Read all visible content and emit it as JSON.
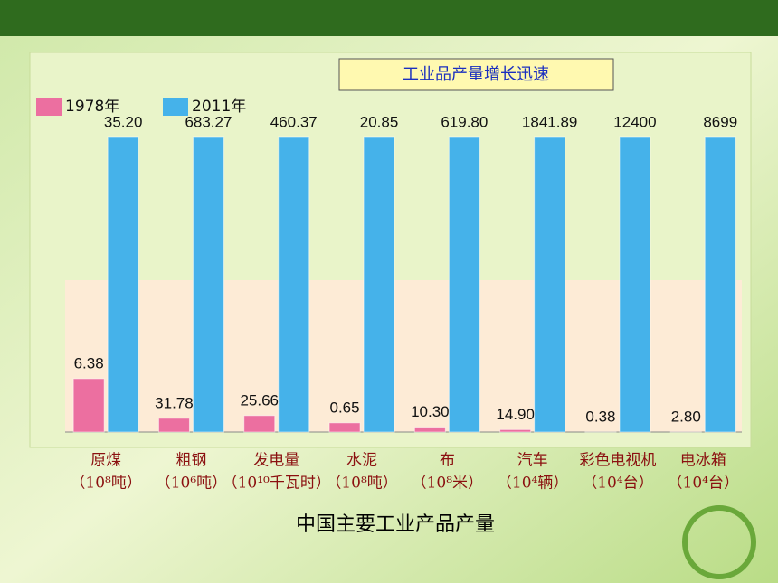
{
  "chart_data": {
    "type": "bar",
    "title": "工业品产量增长迅速",
    "caption": "中国主要工业产品产量",
    "categories": [
      "原煤",
      "粗钢",
      "发电量",
      "水泥",
      "布",
      "汽车",
      "彩色电视机",
      "电冰箱"
    ],
    "units": [
      "（10⁸吨）",
      "（10⁶吨）",
      "（10¹⁰千瓦时）",
      "（10⁸吨）",
      "（10⁸米）",
      "（10⁴辆）",
      "（10⁴台）",
      "（10⁴台）"
    ],
    "series": [
      {
        "name": "1978年",
        "color": "#ec6fa0",
        "values": [
          6.38,
          31.78,
          25.66,
          0.65,
          10.3,
          14.9,
          0.38,
          2.8
        ],
        "value_labels": [
          "6.38",
          "31.78",
          "25.66",
          "0.65",
          "10.30",
          "14.90",
          "0.38",
          "2.80"
        ]
      },
      {
        "name": "2011年",
        "color": "#45b2ea",
        "values": [
          35.2,
          683.27,
          460.37,
          20.85,
          619.8,
          1841.89,
          12400,
          8699
        ],
        "value_labels": [
          "35.20",
          "683.27",
          "460.37",
          "20.85",
          "619.80",
          "1841.89",
          "12400",
          "8699"
        ]
      }
    ]
  }
}
